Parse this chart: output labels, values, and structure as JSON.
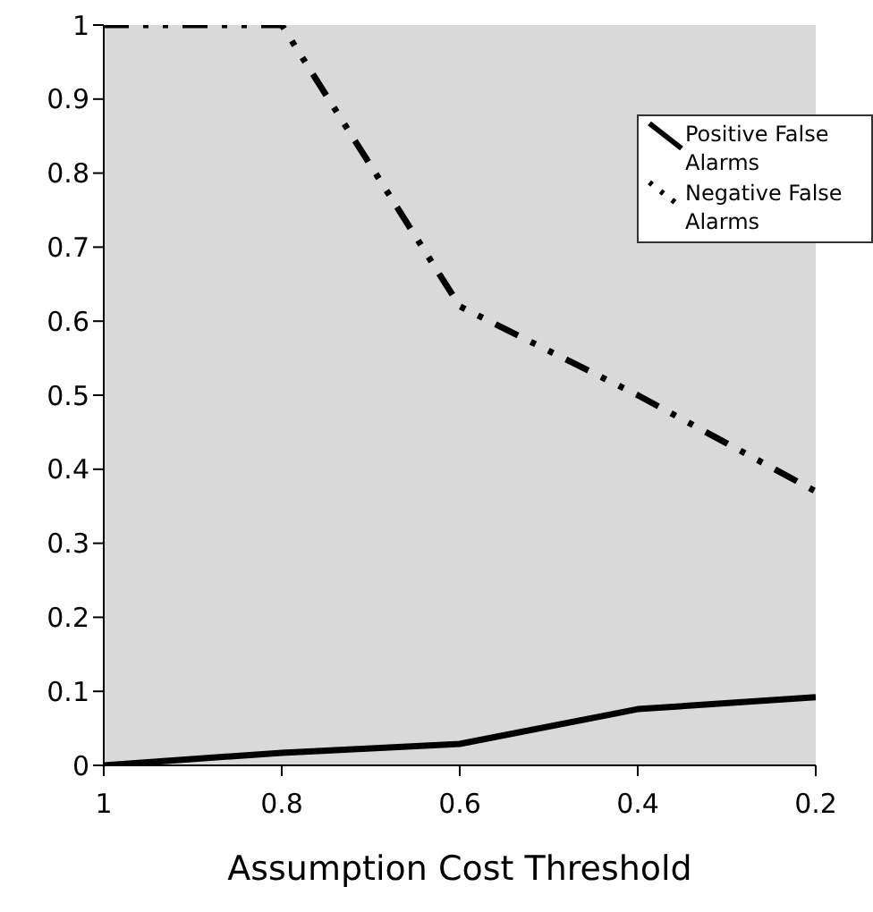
{
  "chart_data": {
    "type": "line",
    "xlabel": "Assumption Cost Threshold",
    "x": [
      1,
      0.8,
      0.6,
      0.4,
      0.2
    ],
    "xlim": [
      1,
      0.2
    ],
    "xticks": [
      1,
      0.8,
      0.6,
      0.4,
      0.2
    ],
    "ylim": [
      0,
      1
    ],
    "yticks": [
      0,
      0.1,
      0.2,
      0.3,
      0.4,
      0.5,
      0.6,
      0.7,
      0.8,
      0.9,
      1
    ],
    "grid": false,
    "legend": "right",
    "marker": "none",
    "series": [
      {
        "name": "Positive False Alarms",
        "color": "#000000",
        "line_style": "solid",
        "values": [
          0,
          0.017,
          0.029,
          0.076,
          0.092
        ]
      },
      {
        "name": "Negative False Alarms",
        "color": "#000000",
        "line_style": "dashed",
        "values": [
          1,
          1,
          0.62,
          0.5,
          0.37
        ]
      }
    ]
  }
}
